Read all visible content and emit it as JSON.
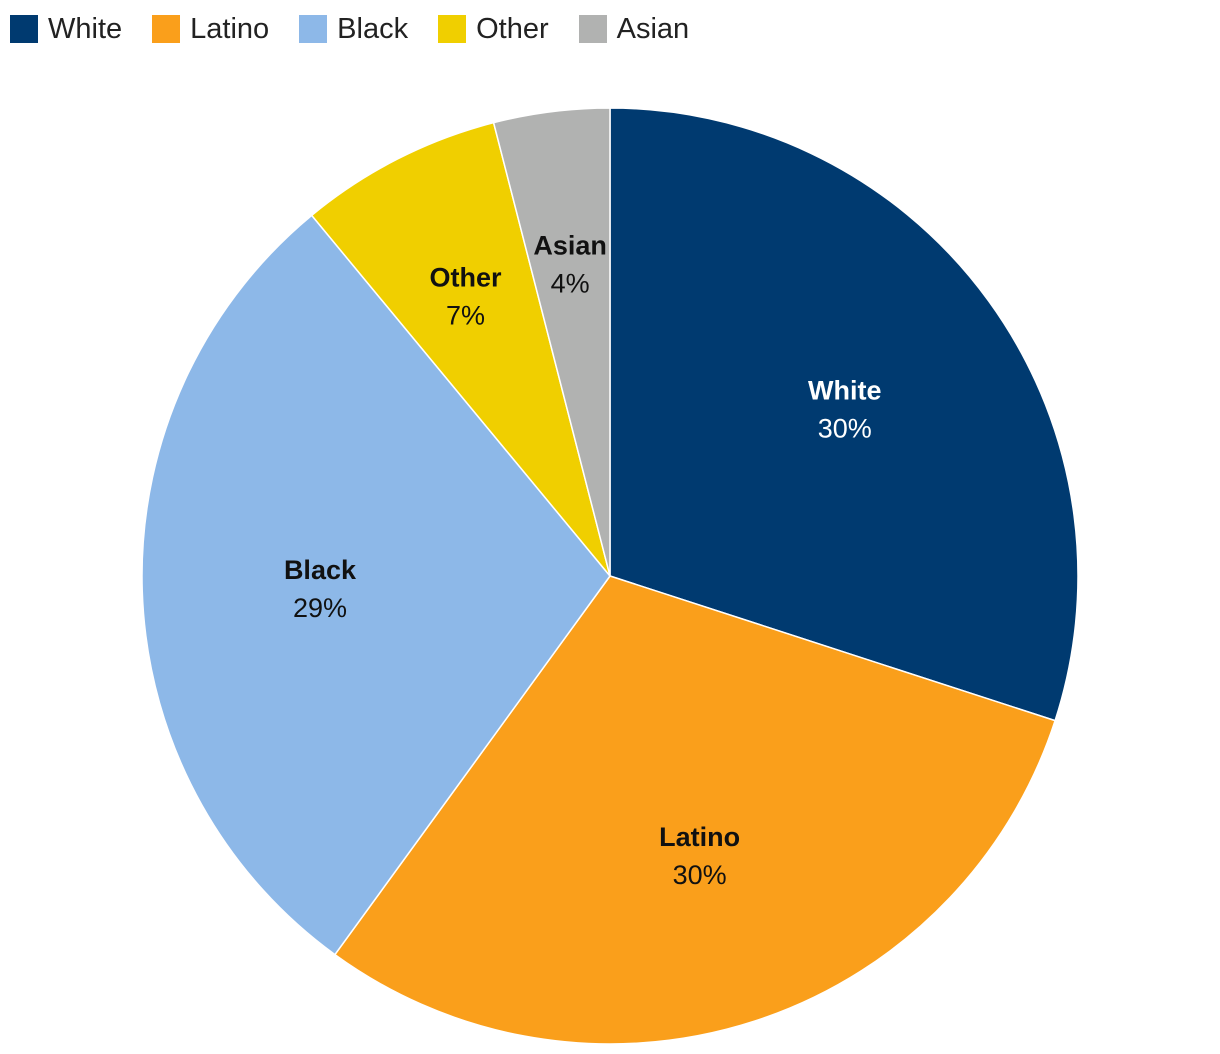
{
  "chart_data": {
    "type": "pie",
    "title": "",
    "legend_position": "top-left",
    "slices": [
      {
        "name": "White",
        "value": 30,
        "label": "30%",
        "color": "#003a70",
        "label_color": "#ffffff"
      },
      {
        "name": "Latino",
        "value": 30,
        "label": "30%",
        "color": "#fa9f1b",
        "label_color": "#111111"
      },
      {
        "name": "Black",
        "value": 29,
        "label": "29%",
        "color": "#8db8e8",
        "label_color": "#111111"
      },
      {
        "name": "Other",
        "value": 7,
        "label": "7%",
        "color": "#f0cf00",
        "label_color": "#111111"
      },
      {
        "name": "Asian",
        "value": 4,
        "label": "4%",
        "color": "#b1b2b1",
        "label_color": "#111111"
      }
    ]
  }
}
